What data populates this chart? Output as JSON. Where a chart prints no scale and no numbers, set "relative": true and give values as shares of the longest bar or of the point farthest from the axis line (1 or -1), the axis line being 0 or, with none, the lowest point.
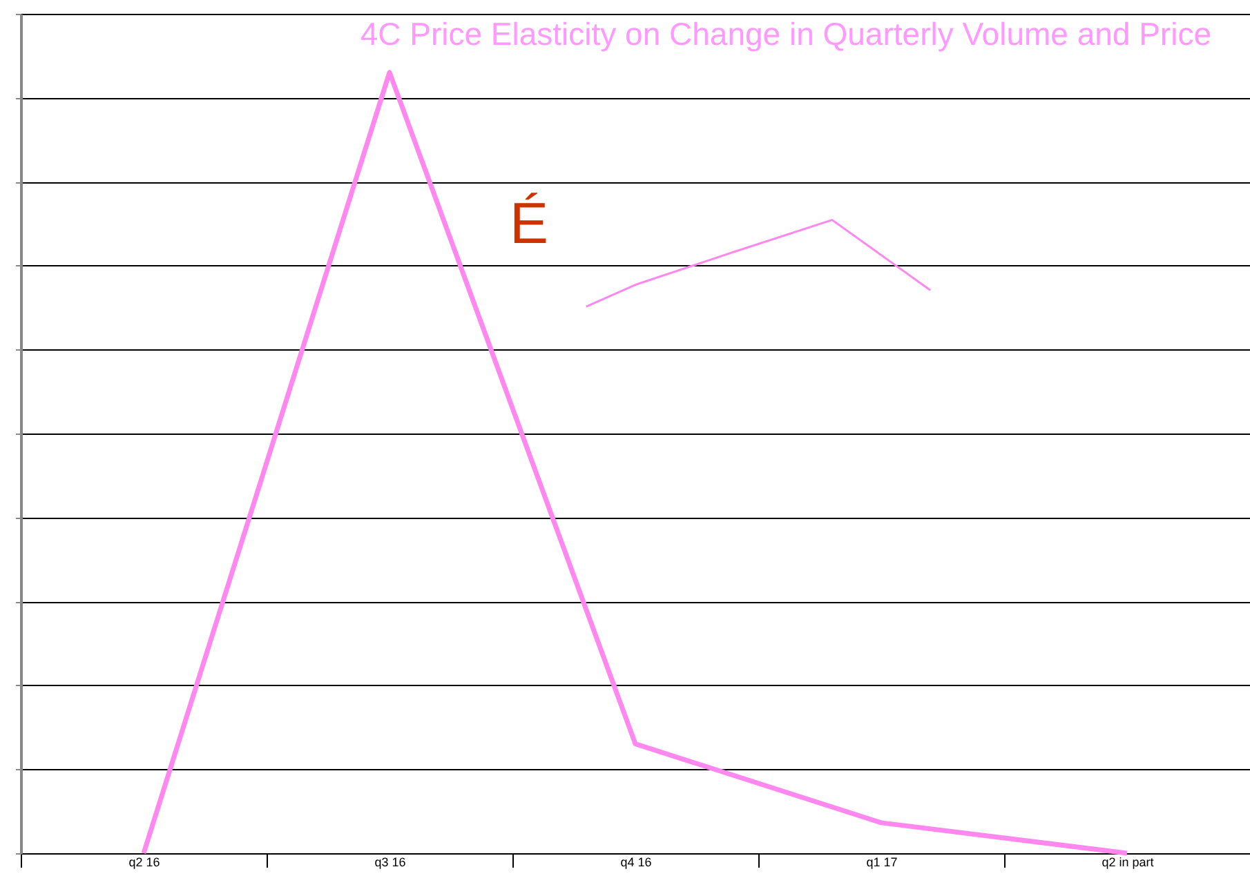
{
  "chart_data": {
    "type": "line",
    "title": "4C Price Elasticity on Change in Quarterly Volume and Price",
    "categories": [
      null,
      null,
      "q2 16",
      null,
      null,
      null,
      null,
      "q3 16",
      null,
      null,
      null,
      null,
      "q4 16",
      null,
      null,
      null,
      null,
      "q1 17",
      null,
      null,
      null,
      null,
      "q2 in part",
      null,
      null
    ],
    "relative": true,
    "grid": "y",
    "annotations": [
      "É"
    ],
    "series": [
      {
        "color": "#ff88f0",
        "values": [
          null,
          null,
          0,
          null,
          null,
          null,
          null,
          1,
          null,
          null,
          null,
          null,
          0.14,
          null,
          null,
          null,
          null,
          0.039,
          null,
          null,
          null,
          null,
          0,
          null,
          null
        ]
      },
      {
        "color": "#ff88f0",
        "values": [
          null,
          null,
          null,
          null,
          null,
          null,
          null,
          null,
          null,
          null,
          null,
          0.7,
          0.728,
          null,
          0.77,
          null,
          0.811,
          null,
          0.721,
          null,
          null,
          null,
          null,
          null,
          null
        ]
      }
    ]
  }
}
